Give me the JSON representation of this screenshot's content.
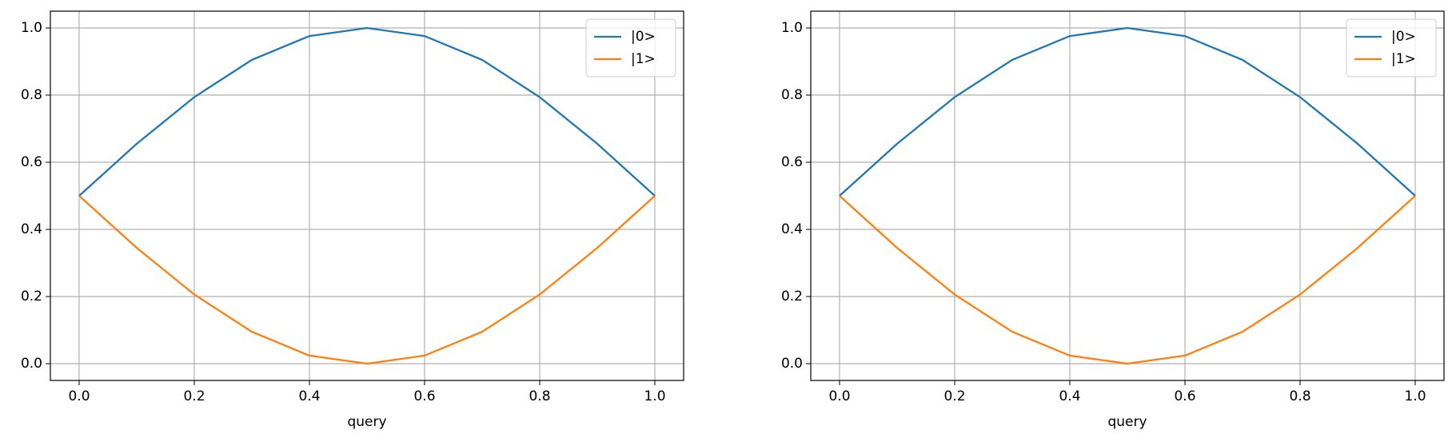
{
  "chart_data": [
    {
      "type": "line",
      "xlabel": "query",
      "x": [
        0,
        0.1,
        0.2,
        0.3,
        0.4,
        0.5,
        0.6,
        0.7,
        0.8,
        0.9,
        1
      ],
      "series": [
        {
          "name": "|0>",
          "color": "#1f77b4",
          "values": [
            0.5,
            0.655,
            0.794,
            0.905,
            0.976,
            1.0,
            0.976,
            0.905,
            0.794,
            0.655,
            0.5
          ]
        },
        {
          "name": "|1>",
          "color": "#ff7f0e",
          "values": [
            0.5,
            0.345,
            0.206,
            0.095,
            0.024,
            0.0,
            0.024,
            0.095,
            0.206,
            0.345,
            0.5
          ]
        }
      ],
      "xlim": [
        -0.05,
        1.05
      ],
      "ylim": [
        -0.05,
        1.05
      ],
      "xticks": [
        {
          "value": 0,
          "label": "0.0"
        },
        0.2,
        0.4,
        0.6,
        0.8,
        {
          "value": 1,
          "label": "1.0"
        }
      ],
      "yticks": [
        {
          "value": 0,
          "label": "0.0"
        },
        0.2,
        0.4,
        0.6,
        0.8,
        {
          "value": 1,
          "label": "1.0"
        }
      ],
      "grid": true,
      "legend": "upper right"
    },
    {
      "type": "line",
      "xlabel": "query",
      "x": [
        0,
        0.1,
        0.2,
        0.3,
        0.4,
        0.5,
        0.6,
        0.7,
        0.8,
        0.9,
        1
      ],
      "series": [
        {
          "name": "|0>",
          "color": "#1f77b4",
          "values": [
            0.5,
            0.655,
            0.794,
            0.905,
            0.976,
            1.0,
            0.976,
            0.905,
            0.794,
            0.655,
            0.5
          ]
        },
        {
          "name": "|1>",
          "color": "#ff7f0e",
          "values": [
            0.5,
            0.345,
            0.206,
            0.095,
            0.024,
            0.0,
            0.024,
            0.095,
            0.206,
            0.345,
            0.5
          ]
        }
      ],
      "xlim": [
        -0.05,
        1.05
      ],
      "ylim": [
        -0.05,
        1.05
      ],
      "xticks": [
        {
          "value": 0,
          "label": "0.0"
        },
        0.2,
        0.4,
        0.6,
        0.8,
        {
          "value": 1,
          "label": "1.0"
        }
      ],
      "yticks": [
        {
          "value": 0,
          "label": "0.0"
        },
        0.2,
        0.4,
        0.6,
        0.8,
        {
          "value": 1,
          "label": "1.0"
        }
      ],
      "grid": true,
      "legend": "upper right"
    }
  ]
}
